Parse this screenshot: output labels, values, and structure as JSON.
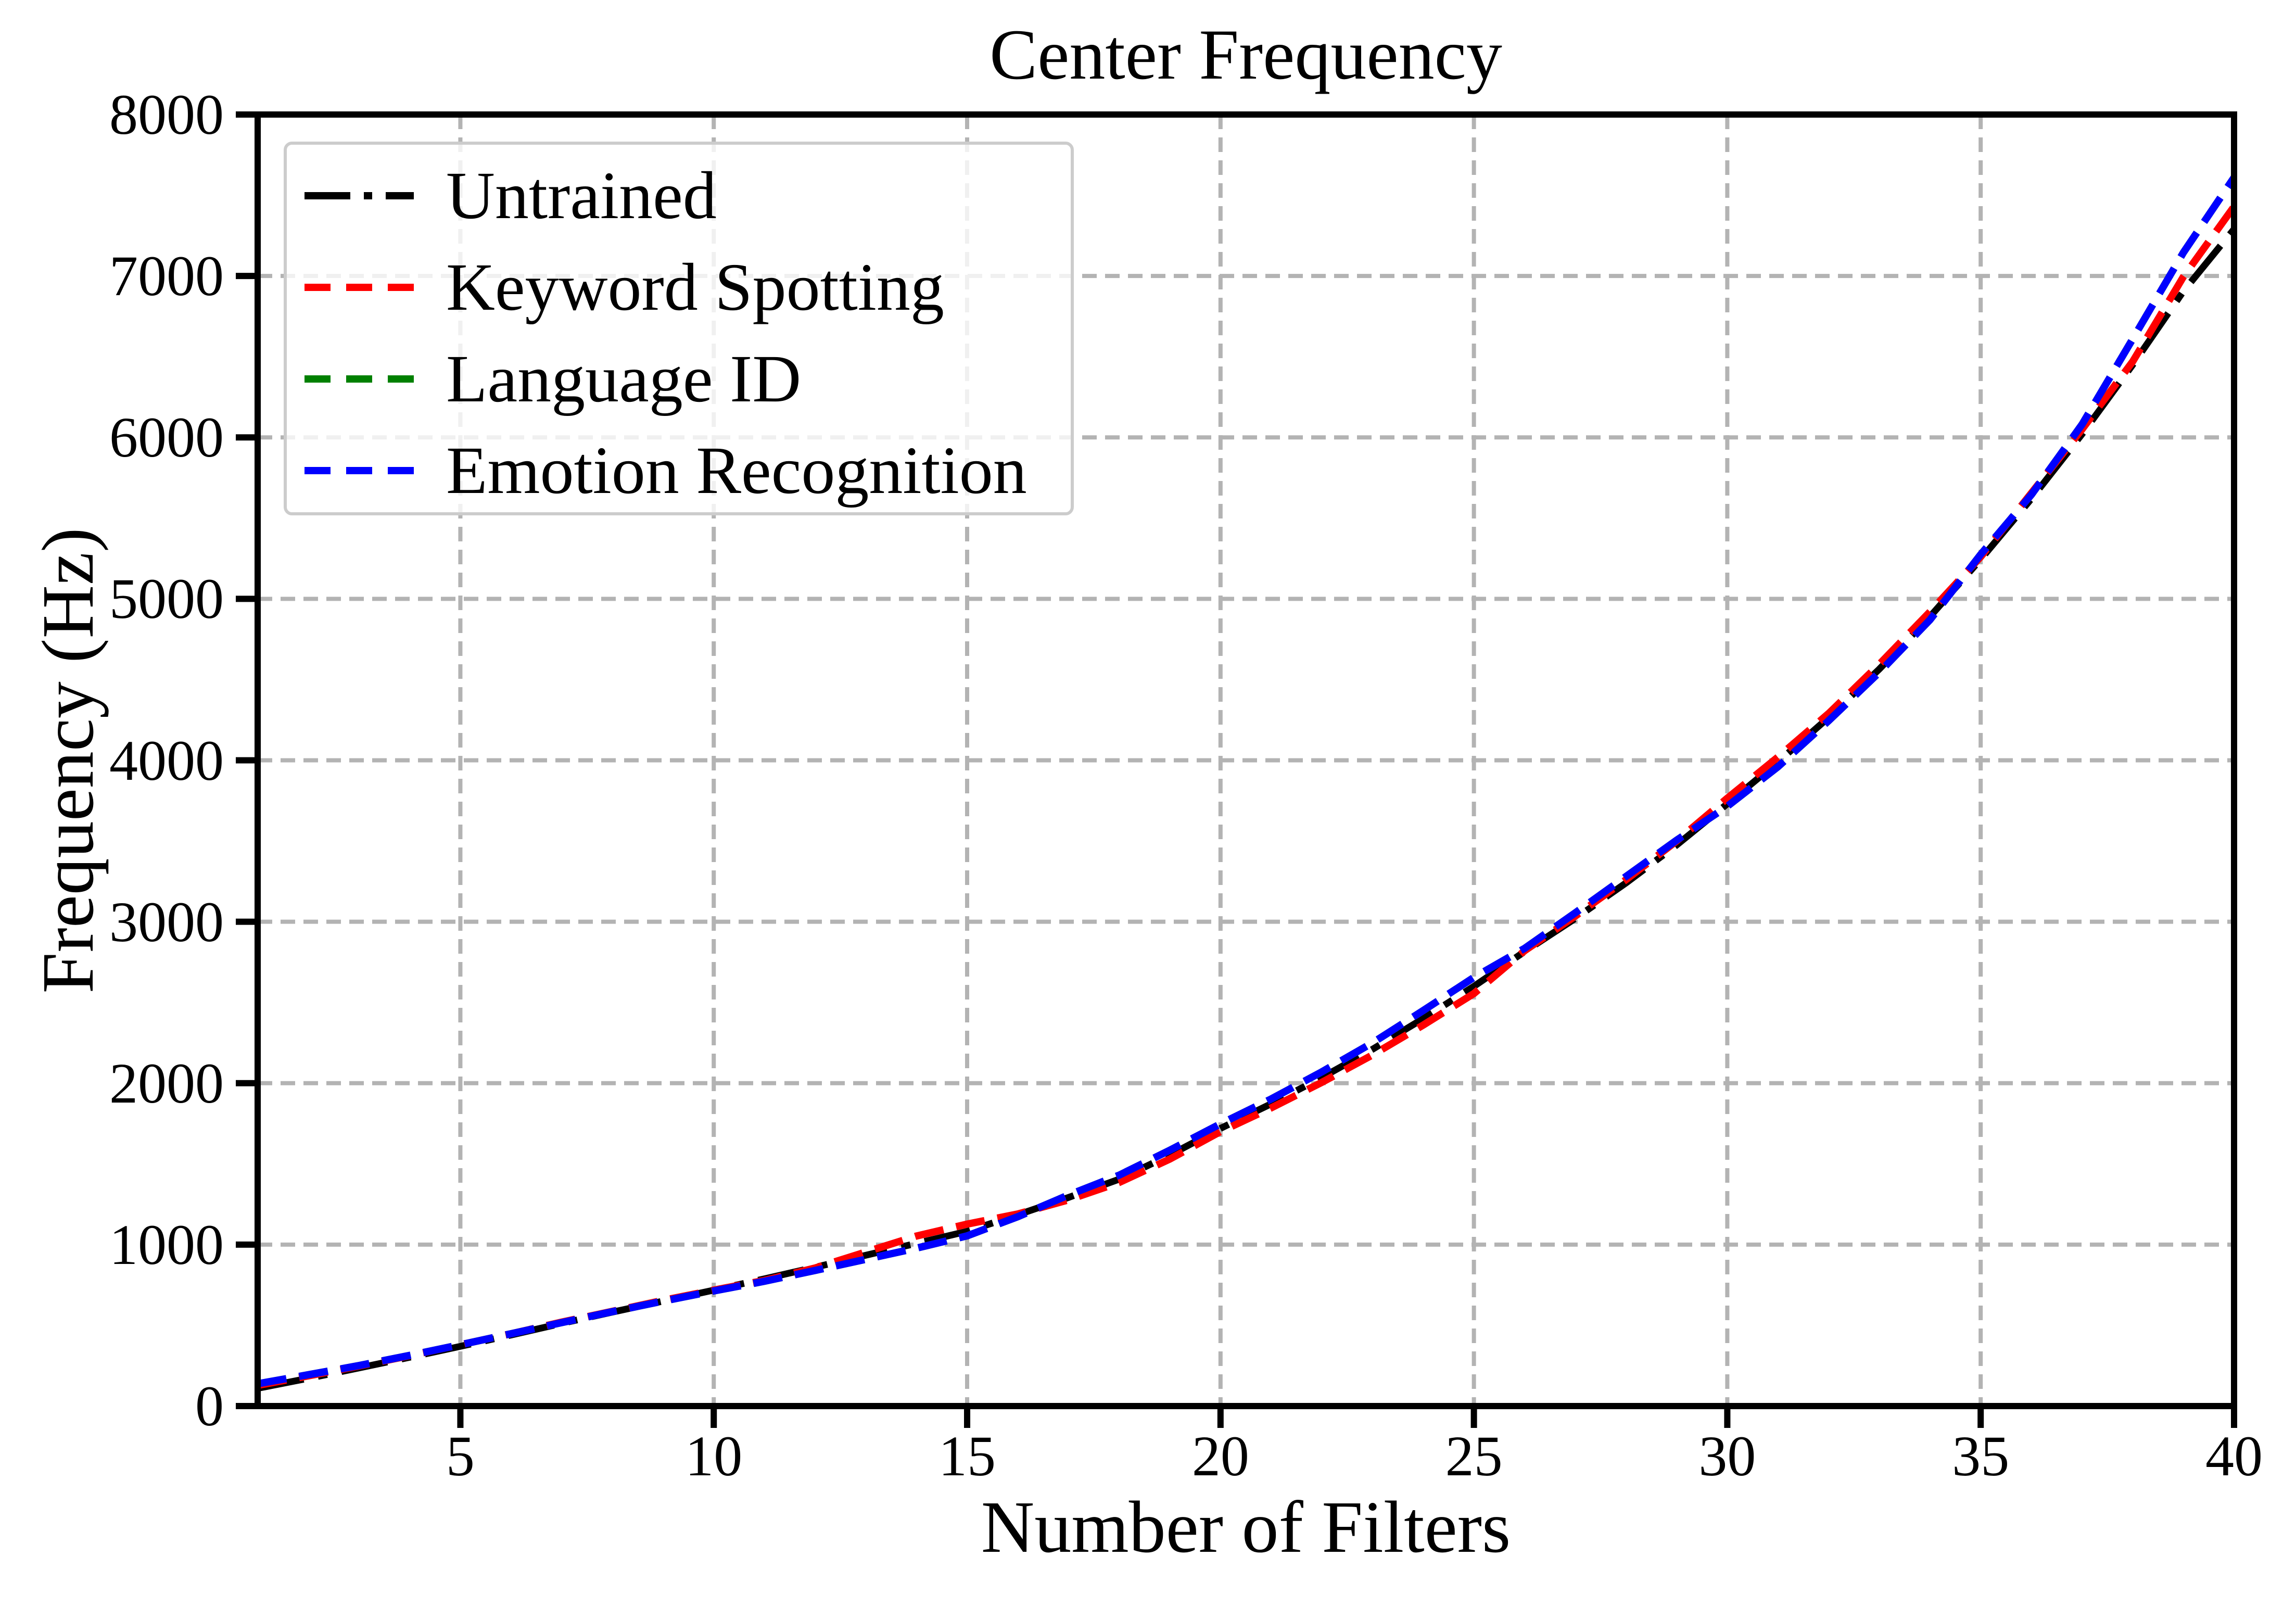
{
  "colors": {
    "axis": "#000000",
    "grid": "#ababab",
    "legend_border": "#cccccc",
    "untrained": "#000000",
    "keyword_spotting": "#ff0000",
    "language_id": "#008000",
    "emotion_recognition": "#0000ff"
  },
  "chart_data": {
    "type": "line",
    "title": "Center Frequency",
    "xlabel": "Number of Filters",
    "ylabel": "Frequency (Hz)",
    "xlim": [
      1,
      40
    ],
    "ylim": [
      0,
      8000
    ],
    "x_ticks": [
      5,
      10,
      15,
      20,
      25,
      30,
      35,
      40
    ],
    "y_ticks": [
      0,
      1000,
      2000,
      3000,
      4000,
      5000,
      6000,
      7000,
      8000
    ],
    "grid": true,
    "grid_linestyle": "dashed",
    "legend_position": "upper left",
    "x": [
      1,
      2,
      3,
      4,
      5,
      6,
      7,
      8,
      9,
      10,
      11,
      12,
      13,
      14,
      15,
      16,
      17,
      18,
      19,
      20,
      21,
      22,
      23,
      24,
      25,
      26,
      27,
      28,
      29,
      30,
      31,
      32,
      33,
      34,
      35,
      36,
      37,
      38,
      39,
      40
    ],
    "series": [
      {
        "name": "Untrained",
        "color": "#000000",
        "linestyle": "dashdot",
        "values": [
          110,
          172,
          236,
          302,
          370,
          440,
          512,
          582,
          650,
          718,
          788,
          860,
          934,
          1008,
          1082,
          1185,
          1292,
          1405,
          1555,
          1720,
          1872,
          2035,
          2210,
          2400,
          2600,
          2815,
          3020,
          3240,
          3475,
          3730,
          3990,
          4265,
          4565,
          4890,
          5245,
          5620,
          6020,
          6450,
          6905,
          7290
        ]
      },
      {
        "name": "Keyword Spotting",
        "color": "#ff0000",
        "linestyle": "dashed",
        "values": [
          128,
          187,
          248,
          312,
          380,
          448,
          520,
          587,
          655,
          718,
          778,
          855,
          954,
          1053,
          1127,
          1190,
          1277,
          1385,
          1530,
          1700,
          1847,
          2005,
          2175,
          2360,
          2555,
          2820,
          3035,
          3260,
          3500,
          3765,
          4020,
          4290,
          4595,
          4920,
          5260,
          5655,
          6050,
          6470,
          6995,
          7430
        ]
      },
      {
        "name": "Language ID",
        "color": "#008000",
        "linestyle": "dashed",
        "values": [
          138,
          194,
          251,
          314,
          380,
          448,
          517,
          585,
          650,
          713,
          773,
          840,
          909,
          978,
          1054,
          1173,
          1307,
          1430,
          1585,
          1748,
          1902,
          2070,
          2250,
          2450,
          2655,
          2835,
          3055,
          3280,
          3505,
          3715,
          3960,
          4245,
          4545,
          4870,
          5275,
          5645,
          6080,
          6610,
          7145,
          7610
        ]
      },
      {
        "name": "Emotion Recognition",
        "color": "#0000ff",
        "linestyle": "dashed",
        "values": [
          138,
          194,
          251,
          314,
          380,
          448,
          517,
          585,
          650,
          713,
          773,
          840,
          909,
          978,
          1054,
          1173,
          1307,
          1430,
          1585,
          1748,
          1902,
          2070,
          2250,
          2450,
          2655,
          2835,
          3055,
          3280,
          3505,
          3715,
          3960,
          4245,
          4545,
          4870,
          5275,
          5645,
          6080,
          6610,
          7145,
          7610
        ]
      }
    ]
  }
}
